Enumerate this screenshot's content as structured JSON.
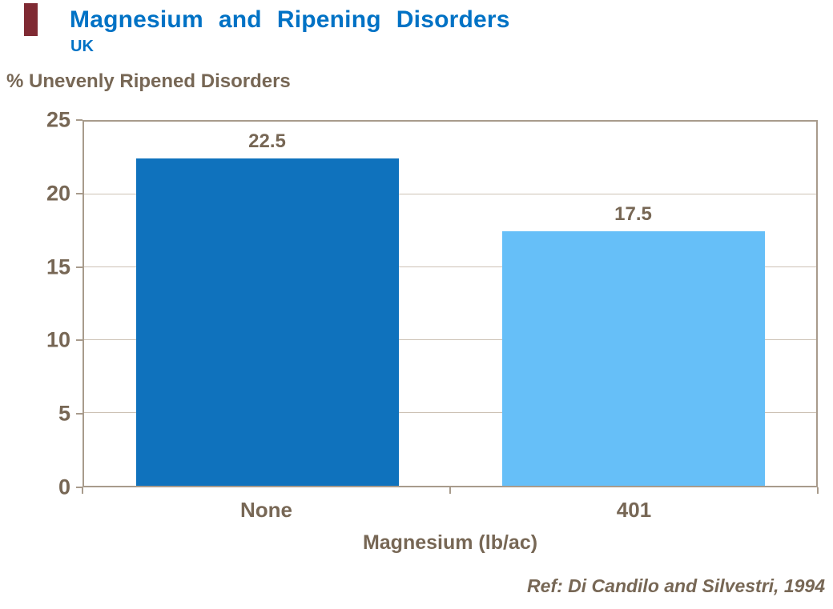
{
  "slide": {
    "title": "Magnesium and Ripening Disorders",
    "subtitle": "UK",
    "reference": "Ref: Di Candilo and Silvestri, 1994"
  },
  "chart_data": {
    "type": "bar",
    "title": "Magnesium and Ripening Disorders",
    "subtitle": "UK",
    "ylabel": "% Unevenly Ripened Disorders",
    "xlabel": "Magnesium (lb/ac)",
    "categories": [
      "None",
      "401"
    ],
    "values": [
      22.5,
      17.5
    ],
    "value_labels": [
      "22.5",
      "17.5"
    ],
    "ylim": [
      0,
      25
    ],
    "yticks": [
      0,
      5,
      10,
      15,
      20,
      25
    ],
    "grid": true,
    "legend": false,
    "bar_colors": [
      "#0F72BD",
      "#66BFF8"
    ]
  },
  "colors": {
    "title_blue": "#0072C5",
    "text_brown": "#776755",
    "axis_line": "#A89B8C",
    "gridline": "#CDC2B5",
    "accent_bar_red": "#7F2A33",
    "bar_dark_blue": "#0F72BD",
    "bar_light_blue": "#66BFF8",
    "background": "#FFFFFF"
  }
}
